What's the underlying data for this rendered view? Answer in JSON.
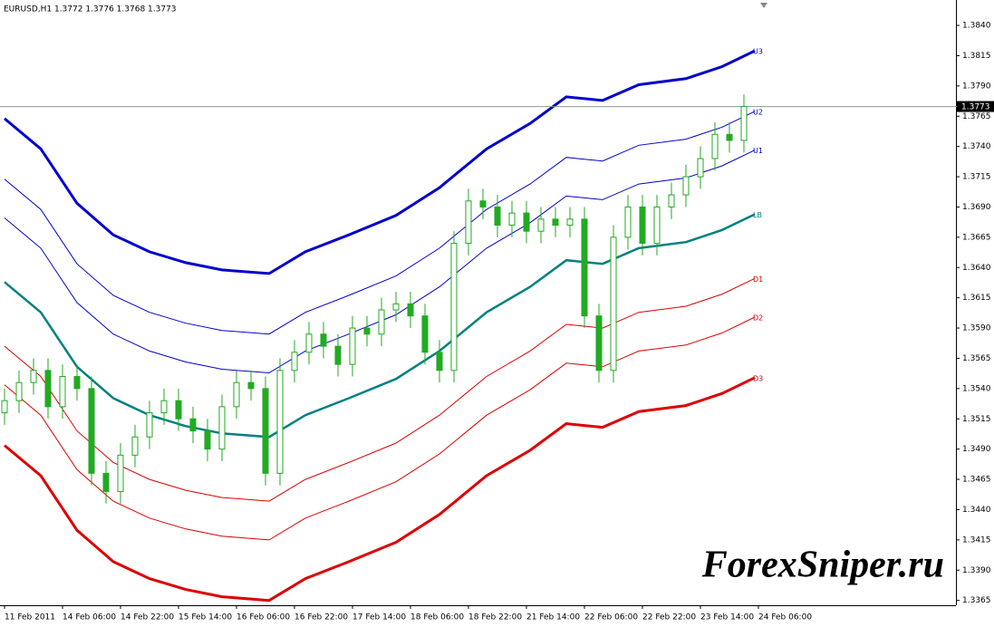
{
  "chart_data": {
    "type": "candlestick",
    "title": "EURUSD,H1  1.3772 1.3776 1.3768 1.3773",
    "watermark": "ForexSniper.ru",
    "xlim": [
      -1.25,
      262.5
    ],
    "ylim": [
      1.3361,
      1.3861
    ],
    "grid": false,
    "xticks": [
      {
        "value": 0,
        "label": "11 Feb 2011"
      },
      {
        "value": 16,
        "label": "14 Feb 06:00"
      },
      {
        "value": 32,
        "label": "14 Feb 22:00"
      },
      {
        "value": 48,
        "label": "15 Feb 14:00"
      },
      {
        "value": 64,
        "label": "16 Feb 06:00"
      },
      {
        "value": 80,
        "label": "16 Feb 22:00"
      },
      {
        "value": 96,
        "label": "17 Feb 14:00"
      },
      {
        "value": 112,
        "label": "18 Feb 06:00"
      },
      {
        "value": 128,
        "label": "18 Feb 22:00"
      },
      {
        "value": 144,
        "label": "21 Feb 14:00"
      },
      {
        "value": 160,
        "label": "22 Feb 06:00"
      },
      {
        "value": 176,
        "label": "22 Feb 22:00"
      },
      {
        "value": 192,
        "label": "23 Feb 14:00"
      },
      {
        "value": 208,
        "label": "24 Feb 06:00"
      }
    ],
    "yticks": [
      {
        "value": 1.384,
        "label": "1.3840"
      },
      1.3815,
      {
        "value": 1.379,
        "label": "1.3790"
      },
      1.3765,
      {
        "value": 1.374,
        "label": "1.3740"
      },
      1.3715,
      {
        "value": 1.369,
        "label": "1.3690"
      },
      1.3665,
      {
        "value": 1.364,
        "label": "1.3640"
      },
      1.3615,
      {
        "value": 1.359,
        "label": "1.3590"
      },
      1.3565,
      {
        "value": 1.354,
        "label": "1.3540"
      },
      1.3515,
      {
        "value": 1.349,
        "label": "1.3490"
      },
      1.3465,
      {
        "value": 1.344,
        "label": "1.3440"
      },
      1.3415,
      {
        "value": 1.339,
        "label": "1.3390"
      },
      1.3365
    ],
    "last_price": {
      "value": 1.3773,
      "label": "1.3773"
    },
    "candles": {
      "color": "#22aa22",
      "x": [
        0,
        4,
        8,
        12,
        16,
        20,
        24,
        28,
        32,
        36,
        40,
        44,
        48,
        52,
        56,
        60,
        64,
        68,
        72,
        76,
        80,
        84,
        88,
        92,
        96,
        100,
        104,
        108,
        112,
        116,
        120,
        124,
        128,
        132,
        136,
        140,
        144,
        148,
        152,
        156,
        160,
        164,
        168,
        172,
        176,
        180,
        184,
        188,
        192,
        196,
        200,
        204
      ],
      "open": [
        1.352,
        1.353,
        1.3545,
        1.3555,
        1.3525,
        1.355,
        1.354,
        1.347,
        1.3455,
        1.3485,
        1.35,
        1.352,
        1.353,
        1.3515,
        1.3505,
        1.349,
        1.3525,
        1.3545,
        1.354,
        1.347,
        1.3555,
        1.357,
        1.3585,
        1.3575,
        1.356,
        1.359,
        1.3585,
        1.3605,
        1.361,
        1.36,
        1.357,
        1.3555,
        1.366,
        1.3695,
        1.369,
        1.3675,
        1.3685,
        1.367,
        1.368,
        1.3675,
        1.368,
        1.36,
        1.3555,
        1.3665,
        1.369,
        1.366,
        1.369,
        1.37,
        1.3715,
        1.373,
        1.375,
        1.3745
      ],
      "high": [
        1.354,
        1.3555,
        1.3565,
        1.3565,
        1.356,
        1.356,
        1.355,
        1.348,
        1.3495,
        1.351,
        1.353,
        1.354,
        1.354,
        1.3525,
        1.3515,
        1.3535,
        1.3555,
        1.3555,
        1.355,
        1.3565,
        1.358,
        1.3595,
        1.3595,
        1.3585,
        1.36,
        1.36,
        1.3615,
        1.362,
        1.362,
        1.361,
        1.358,
        1.367,
        1.3705,
        1.3705,
        1.37,
        1.3695,
        1.3695,
        1.369,
        1.369,
        1.369,
        1.369,
        1.361,
        1.3675,
        1.37,
        1.37,
        1.37,
        1.371,
        1.3725,
        1.374,
        1.376,
        1.376,
        1.3783
      ],
      "low": [
        1.351,
        1.352,
        1.3535,
        1.3515,
        1.3515,
        1.353,
        1.346,
        1.3445,
        1.3445,
        1.3475,
        1.349,
        1.351,
        1.3505,
        1.3495,
        1.348,
        1.348,
        1.3515,
        1.353,
        1.346,
        1.346,
        1.3545,
        1.356,
        1.3565,
        1.355,
        1.355,
        1.3575,
        1.3575,
        1.3595,
        1.359,
        1.356,
        1.3545,
        1.3545,
        1.365,
        1.368,
        1.3665,
        1.3665,
        1.366,
        1.366,
        1.3665,
        1.3665,
        1.359,
        1.3545,
        1.3545,
        1.3655,
        1.365,
        1.365,
        1.368,
        1.369,
        1.3705,
        1.372,
        1.3735,
        1.3735
      ],
      "close": [
        1.353,
        1.3545,
        1.3555,
        1.3525,
        1.355,
        1.354,
        1.347,
        1.3455,
        1.3485,
        1.35,
        1.352,
        1.353,
        1.3515,
        1.3505,
        1.349,
        1.3525,
        1.3545,
        1.354,
        1.347,
        1.3555,
        1.357,
        1.3585,
        1.3575,
        1.356,
        1.359,
        1.3585,
        1.3605,
        1.361,
        1.36,
        1.357,
        1.3555,
        1.366,
        1.3695,
        1.369,
        1.3675,
        1.3685,
        1.367,
        1.368,
        1.3675,
        1.368,
        1.36,
        1.3555,
        1.3665,
        1.369,
        1.366,
        1.369,
        1.37,
        1.3715,
        1.373,
        1.375,
        1.3745,
        1.3773
      ]
    },
    "bands": {
      "x": [
        0,
        10,
        20,
        30,
        40,
        50,
        60,
        73,
        83,
        95,
        108,
        120,
        133,
        145,
        155,
        165,
        175,
        188,
        198,
        207
      ],
      "series": [
        {
          "name": "U3",
          "color": "#0000cc",
          "width": 3,
          "values": [
            1.3763,
            1.3738,
            1.3693,
            1.3667,
            1.3653,
            1.3644,
            1.3638,
            1.3635,
            1.3653,
            1.3667,
            1.3683,
            1.3706,
            1.3738,
            1.3759,
            1.3781,
            1.3778,
            1.3791,
            1.3796,
            1.3806,
            1.3819
          ]
        },
        {
          "name": "U2",
          "color": "#0000cc",
          "width": 1,
          "values": [
            1.3713,
            1.3688,
            1.3643,
            1.3617,
            1.3603,
            1.3594,
            1.3588,
            1.3585,
            1.3603,
            1.3617,
            1.3633,
            1.3656,
            1.3688,
            1.3709,
            1.3731,
            1.3728,
            1.3741,
            1.3746,
            1.3756,
            1.3769
          ]
        },
        {
          "name": "U1",
          "color": "#0000cc",
          "width": 1,
          "values": [
            1.3681,
            1.3656,
            1.3611,
            1.3585,
            1.3571,
            1.3562,
            1.3556,
            1.3553,
            1.3571,
            1.3585,
            1.3601,
            1.3624,
            1.3656,
            1.3677,
            1.3699,
            1.3696,
            1.3709,
            1.3714,
            1.3724,
            1.3737
          ]
        },
        {
          "name": "LB",
          "color": "#008080",
          "width": 2.5,
          "values": [
            1.3628,
            1.3603,
            1.3558,
            1.3532,
            1.3518,
            1.3509,
            1.3503,
            1.35,
            1.3518,
            1.3532,
            1.3548,
            1.3571,
            1.3603,
            1.3624,
            1.3646,
            1.3643,
            1.3656,
            1.3661,
            1.3671,
            1.3684
          ]
        },
        {
          "name": "D1",
          "color": "#dd0000",
          "width": 1,
          "values": [
            1.3575,
            1.355,
            1.3505,
            1.3479,
            1.3465,
            1.3456,
            1.345,
            1.3447,
            1.3465,
            1.3479,
            1.3495,
            1.3518,
            1.355,
            1.3571,
            1.3593,
            1.359,
            1.3603,
            1.3608,
            1.3618,
            1.3631
          ]
        },
        {
          "name": "D2",
          "color": "#dd0000",
          "width": 1,
          "values": [
            1.3543,
            1.3518,
            1.3473,
            1.3447,
            1.3433,
            1.3424,
            1.3418,
            1.3415,
            1.3433,
            1.3447,
            1.3463,
            1.3486,
            1.3518,
            1.3539,
            1.3561,
            1.3558,
            1.3571,
            1.3576,
            1.3586,
            1.3599
          ]
        },
        {
          "name": "D3",
          "color": "#dd0000",
          "width": 3,
          "values": [
            1.3493,
            1.3468,
            1.3423,
            1.3397,
            1.3383,
            1.3374,
            1.3368,
            1.3365,
            1.3383,
            1.3397,
            1.3413,
            1.3436,
            1.3468,
            1.3489,
            1.3511,
            1.3508,
            1.3521,
            1.3526,
            1.3536,
            1.3549
          ]
        }
      ]
    }
  }
}
